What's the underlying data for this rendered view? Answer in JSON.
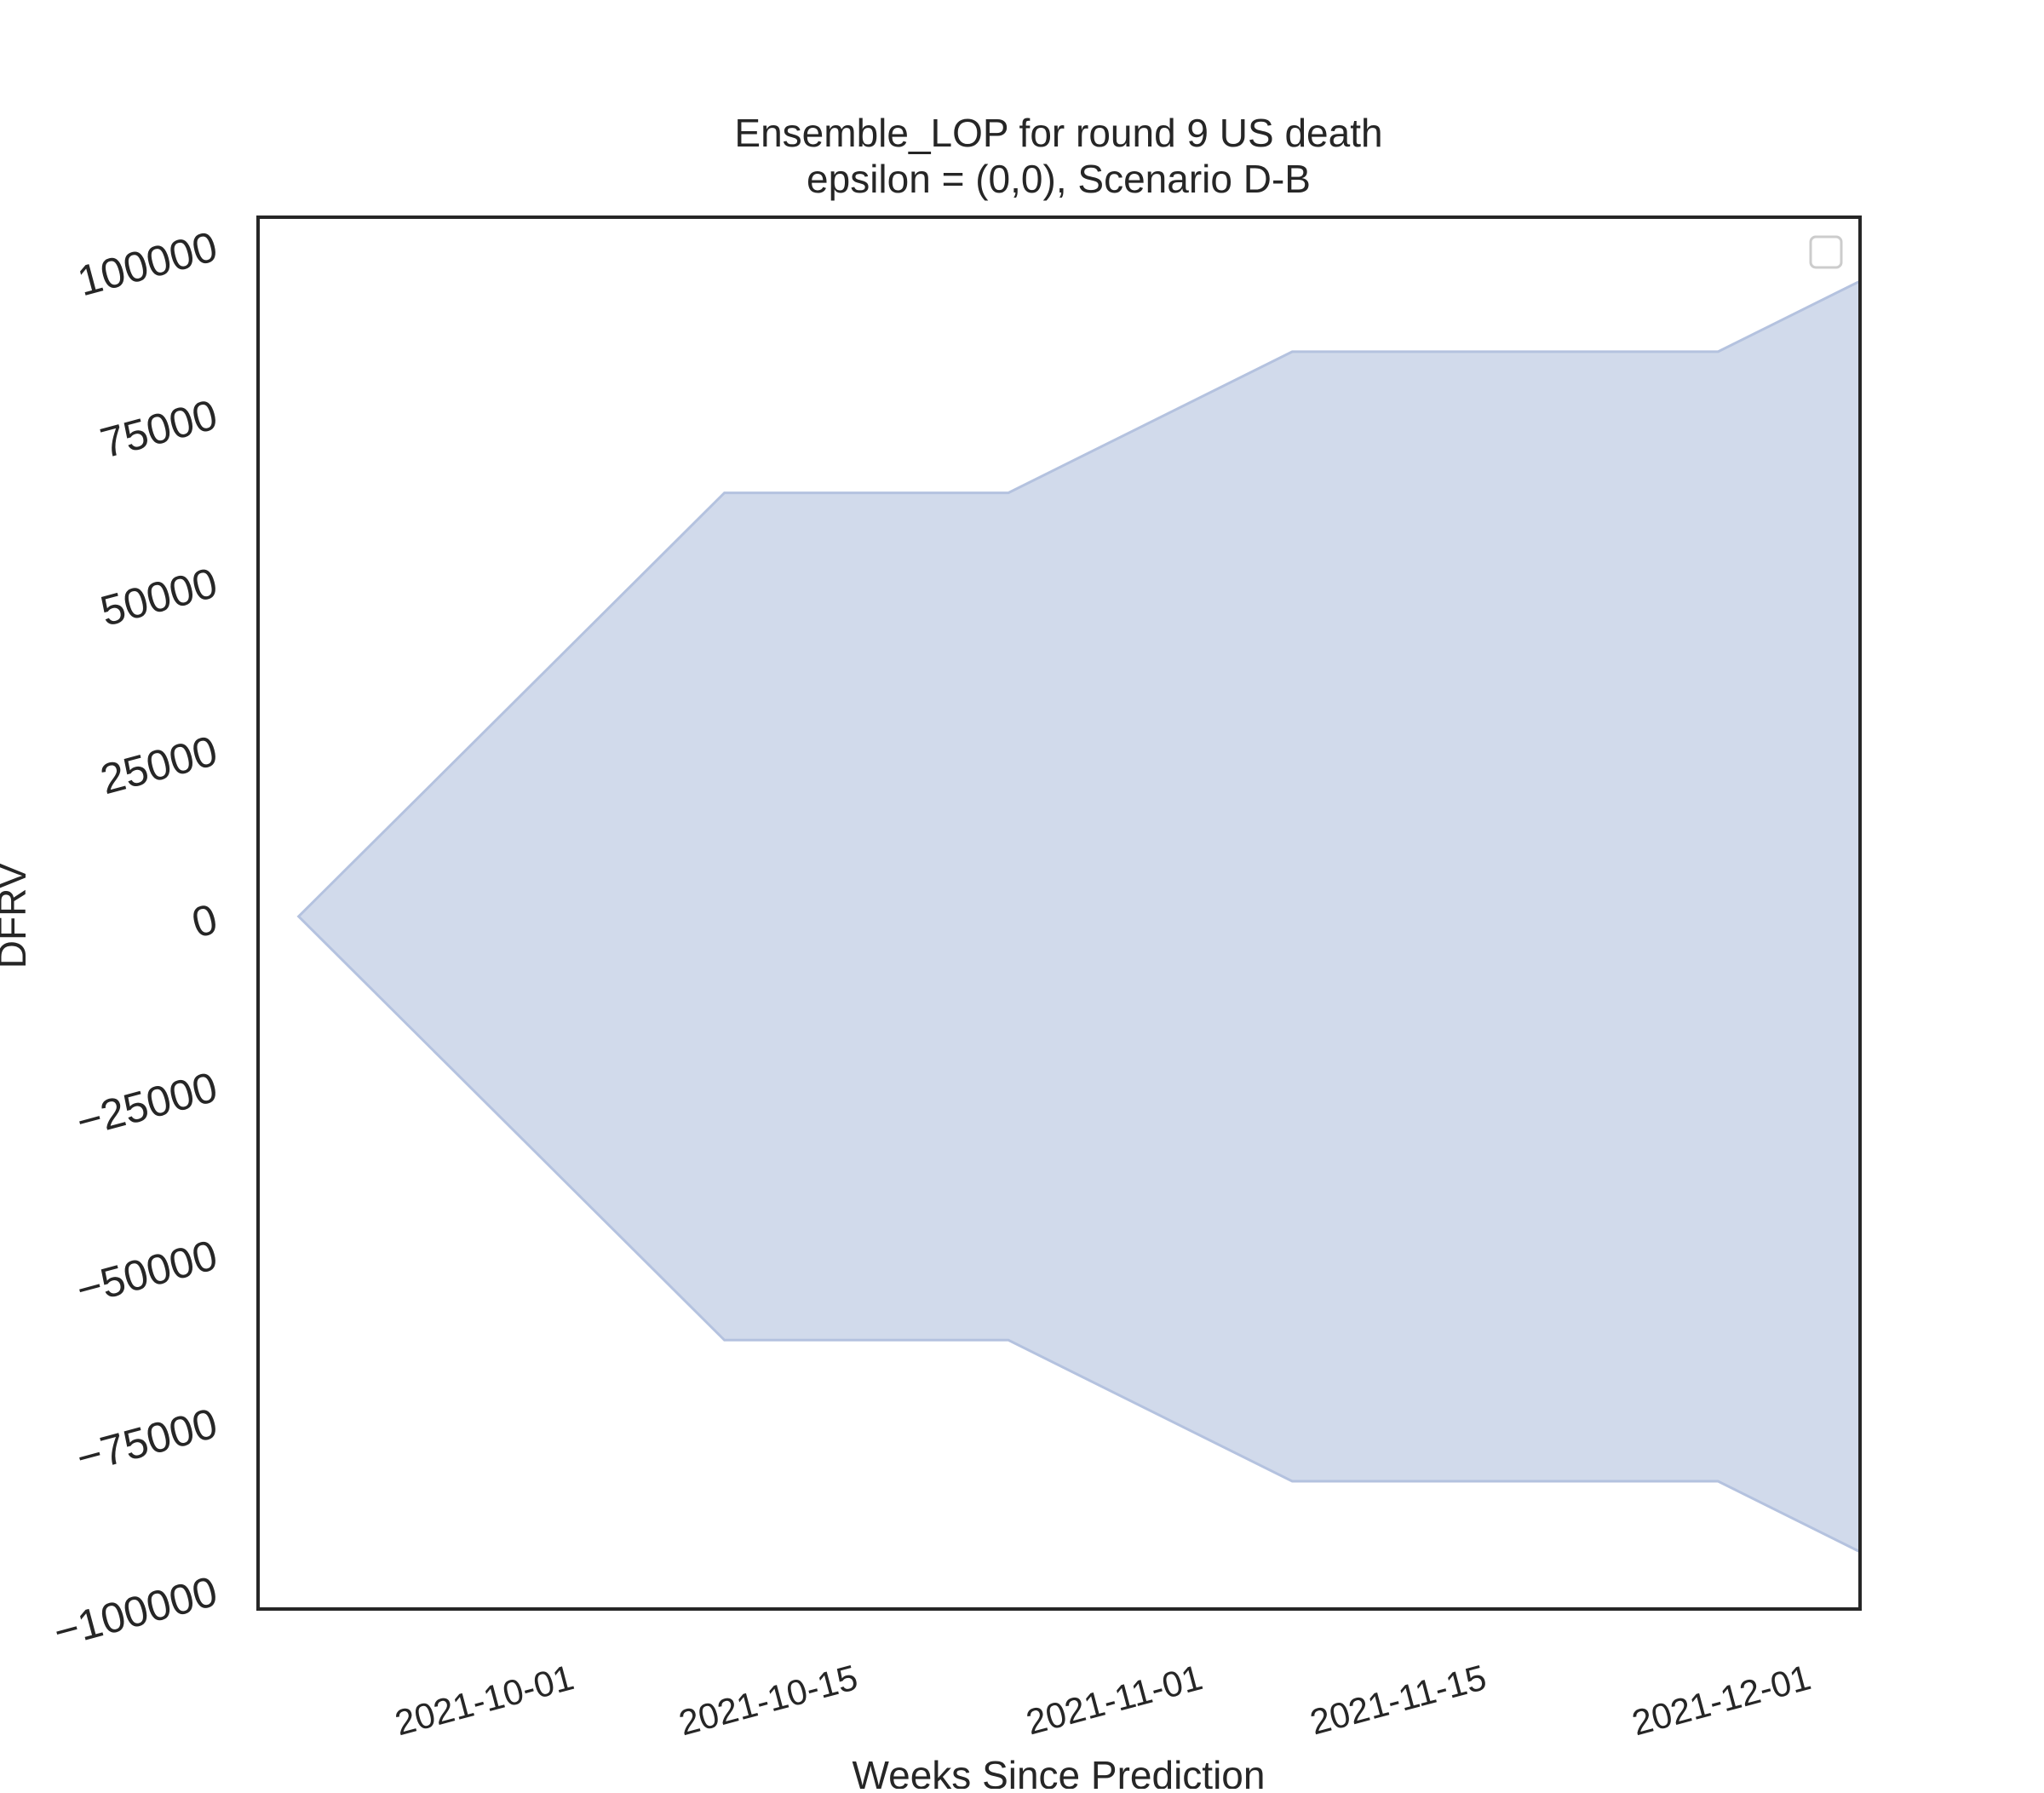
{
  "chart_data": {
    "type": "area",
    "title_line1": "Ensemble_LOP for round 9 US death",
    "title_line2": "epsilon = (0,0), Scenario D-B",
    "xlabel": "Weeks Since Prediction",
    "ylabel": "DFRV",
    "x_ticks": [
      "2021-10-01",
      "2021-10-15",
      "2021-11-01",
      "2021-11-15",
      "2021-12-01"
    ],
    "y_ticks": [
      100000,
      75000,
      50000,
      25000,
      0,
      -25000,
      -50000,
      -75000,
      -100000
    ],
    "y_tick_labels": [
      "100000",
      "75000",
      "50000",
      "25000",
      "0",
      "−25000",
      "−50000",
      "−75000",
      "−100000"
    ],
    "xlim": [
      "2021-09-16",
      "2021-12-04"
    ],
    "ylim": [
      -103000,
      104000
    ],
    "band": {
      "x": [
        "2021-09-18",
        "2021-09-25",
        "2021-10-09",
        "2021-10-23",
        "2021-11-06",
        "2021-11-27",
        "2021-12-04"
      ],
      "upper": [
        0,
        21000,
        63000,
        63000,
        84000,
        84000,
        94500
      ],
      "lower": [
        0,
        -21000,
        -63000,
        -63000,
        -84000,
        -84000,
        -94500
      ],
      "fill_color": "#d1daeb",
      "edge_color": "#b4c2df"
    },
    "legend": {
      "position": "top-right",
      "entries": []
    },
    "grid": false
  }
}
